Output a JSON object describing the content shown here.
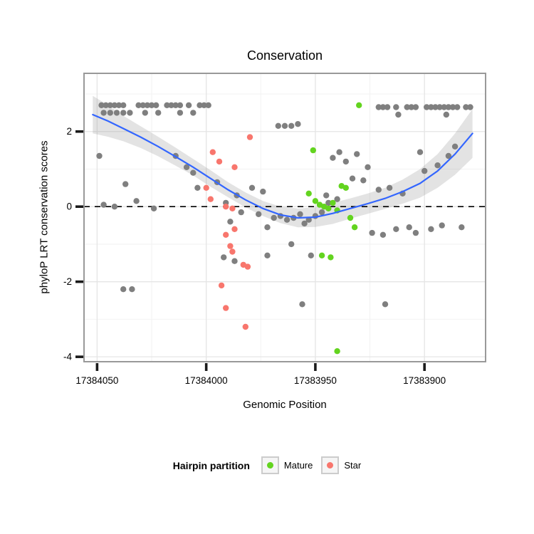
{
  "title": "Conservation",
  "axes": {
    "x_label": "Genomic Position",
    "y_label": "phyloP LRT conservation scores",
    "x_ticks": [
      17384050,
      17384000,
      17383950,
      17383900
    ],
    "x_tick_labels": [
      "17384050",
      "17384000",
      "17383950",
      "17383900"
    ],
    "x_minor_ticks": [
      17384025,
      17383975,
      17383925
    ],
    "y_ticks": [
      2,
      0,
      -2,
      -4
    ],
    "y_tick_labels": [
      "2",
      "0",
      "-2",
      "-4"
    ],
    "y_minor_ticks": [
      3,
      1,
      -1,
      -3
    ],
    "x_domain": [
      17384056,
      17383872
    ],
    "y_domain": [
      3.55,
      -4.13
    ]
  },
  "legend": {
    "title": "Hairpin partition",
    "items": [
      {
        "label": "Mature",
        "color": "#63d41f"
      },
      {
        "label": "Star",
        "color": "#f8766d"
      }
    ]
  },
  "colors": {
    "point_default": "#7f7f7f",
    "mature": "#63d41f",
    "star": "#f8766d",
    "smooth_line": "#3366ff",
    "ribbon": "#999999",
    "grid_major": "#e5e5e5",
    "grid_minor": "#f2f2f2",
    "panel_border": "#999999",
    "reference_line": "#000000",
    "tick": "#1a1a1a"
  },
  "chart_data": {
    "type": "scatter",
    "title": "Conservation",
    "xlabel": "Genomic Position",
    "ylabel": "phyloP LRT conservation scores",
    "xlim": [
      17384056,
      17383872
    ],
    "ylim": [
      -4.13,
      3.55
    ],
    "x_reversed": true,
    "grid": true,
    "legend_position": "bottom",
    "reference_line": {
      "y": 0,
      "style": "dashed",
      "color": "#000000"
    },
    "series": [
      {
        "name": "Unpartitioned",
        "color": "#7f7f7f",
        "points": [
          [
            17384048,
            2.7
          ],
          [
            17384046,
            2.7
          ],
          [
            17384044,
            2.7
          ],
          [
            17384042,
            2.7
          ],
          [
            17384040,
            2.7
          ],
          [
            17384038,
            2.7
          ],
          [
            17384031,
            2.7
          ],
          [
            17384029,
            2.7
          ],
          [
            17384027,
            2.7
          ],
          [
            17384025,
            2.7
          ],
          [
            17384023,
            2.7
          ],
          [
            17384018,
            2.7
          ],
          [
            17384016,
            2.7
          ],
          [
            17384014,
            2.7
          ],
          [
            17384012,
            2.7
          ],
          [
            17384008,
            2.7
          ],
          [
            17384003,
            2.7
          ],
          [
            17384001,
            2.7
          ],
          [
            17383999,
            2.7
          ],
          [
            17384047,
            2.5
          ],
          [
            17384044,
            2.5
          ],
          [
            17384041,
            2.5
          ],
          [
            17384038,
            2.5
          ],
          [
            17384035,
            2.5
          ],
          [
            17384028,
            2.5
          ],
          [
            17384022,
            2.5
          ],
          [
            17384012,
            2.5
          ],
          [
            17384006,
            2.5
          ],
          [
            17383921,
            2.65
          ],
          [
            17383919,
            2.65
          ],
          [
            17383917,
            2.65
          ],
          [
            17383913,
            2.65
          ],
          [
            17383908,
            2.65
          ],
          [
            17383906,
            2.65
          ],
          [
            17383904,
            2.65
          ],
          [
            17383899,
            2.65
          ],
          [
            17383897,
            2.65
          ],
          [
            17383895,
            2.65
          ],
          [
            17383893,
            2.65
          ],
          [
            17383891,
            2.65
          ],
          [
            17383889,
            2.65
          ],
          [
            17383887,
            2.65
          ],
          [
            17383885,
            2.65
          ],
          [
            17383881,
            2.65
          ],
          [
            17383879,
            2.65
          ],
          [
            17383912,
            2.45
          ],
          [
            17383890,
            2.45
          ],
          [
            17383967,
            2.15
          ],
          [
            17383964,
            2.15
          ],
          [
            17383961,
            2.15
          ],
          [
            17383958,
            2.2
          ],
          [
            17384049,
            1.35
          ],
          [
            17384047,
            0.05
          ],
          [
            17384042,
            0
          ],
          [
            17384037,
            0.6
          ],
          [
            17384032,
            0.15
          ],
          [
            17384024,
            -0.05
          ],
          [
            17384038,
            -2.2
          ],
          [
            17384034,
            -2.2
          ],
          [
            17384014,
            1.35
          ],
          [
            17384009,
            1.05
          ],
          [
            17384006,
            0.9
          ],
          [
            17384004,
            0.5
          ],
          [
            17383995,
            0.65
          ],
          [
            17383991,
            0.1
          ],
          [
            17383989,
            -0.4
          ],
          [
            17383986,
            0.3
          ],
          [
            17383984,
            -0.15
          ],
          [
            17383979,
            0.5
          ],
          [
            17383976,
            -0.2
          ],
          [
            17383974,
            0.4
          ],
          [
            17383972,
            -0.55
          ],
          [
            17383969,
            -0.3
          ],
          [
            17383966,
            -0.25
          ],
          [
            17383963,
            -0.35
          ],
          [
            17383960,
            -0.3
          ],
          [
            17383957,
            -0.2
          ],
          [
            17383955,
            -0.45
          ],
          [
            17383953,
            -0.35
          ],
          [
            17383950,
            -0.25
          ],
          [
            17383947,
            -0.15
          ],
          [
            17383944,
            0.1
          ],
          [
            17383992,
            -1.35
          ],
          [
            17383987,
            -1.45
          ],
          [
            17383972,
            -1.3
          ],
          [
            17383961,
            -1
          ],
          [
            17383956,
            -2.6
          ],
          [
            17383952,
            -1.3
          ],
          [
            17383942,
            1.3
          ],
          [
            17383939,
            1.45
          ],
          [
            17383936,
            1.2
          ],
          [
            17383933,
            0.75
          ],
          [
            17383931,
            1.4
          ],
          [
            17383928,
            0.7
          ],
          [
            17383926,
            1.05
          ],
          [
            17383924,
            -0.7
          ],
          [
            17383921,
            0.45
          ],
          [
            17383919,
            -0.75
          ],
          [
            17383916,
            0.5
          ],
          [
            17383918,
            -2.6
          ],
          [
            17383913,
            -0.6
          ],
          [
            17383910,
            0.35
          ],
          [
            17383907,
            -0.55
          ],
          [
            17383904,
            -0.7
          ],
          [
            17383902,
            1.45
          ],
          [
            17383900,
            0.95
          ],
          [
            17383897,
            -0.6
          ],
          [
            17383894,
            1.1
          ],
          [
            17383892,
            -0.5
          ],
          [
            17383889,
            1.35
          ],
          [
            17383886,
            1.6
          ],
          [
            17383883,
            -0.55
          ],
          [
            17383945,
            0.3
          ],
          [
            17383940,
            0.2
          ]
        ]
      },
      {
        "name": "Star",
        "color": "#f8766d",
        "points": [
          [
            17384000,
            0.5
          ],
          [
            17383998,
            0.2
          ],
          [
            17383997,
            1.45
          ],
          [
            17383994,
            1.2
          ],
          [
            17383993,
            -2.1
          ],
          [
            17383991,
            0
          ],
          [
            17383991,
            -0.75
          ],
          [
            17383991,
            -2.7
          ],
          [
            17383989,
            -1.05
          ],
          [
            17383988,
            -0.05
          ],
          [
            17383988,
            -1.2
          ],
          [
            17383987,
            1.05
          ],
          [
            17383987,
            -0.6
          ],
          [
            17383983,
            -1.55
          ],
          [
            17383981,
            -1.6
          ],
          [
            17383980,
            1.85
          ],
          [
            17383982,
            -3.2
          ]
        ]
      },
      {
        "name": "Mature",
        "color": "#63d41f",
        "points": [
          [
            17383930,
            2.7
          ],
          [
            17383951,
            1.5
          ],
          [
            17383953,
            0.35
          ],
          [
            17383950,
            0.15
          ],
          [
            17383948,
            0.05
          ],
          [
            17383946,
            0
          ],
          [
            17383944,
            -0.05
          ],
          [
            17383942,
            0.1
          ],
          [
            17383940,
            -0.1
          ],
          [
            17383938,
            0.55
          ],
          [
            17383936,
            0.5
          ],
          [
            17383934,
            -0.3
          ],
          [
            17383932,
            -0.55
          ],
          [
            17383947,
            -1.3
          ],
          [
            17383943,
            -1.35
          ],
          [
            17383940,
            -3.85
          ]
        ]
      }
    ],
    "smooth": {
      "name": "loess fit",
      "color": "#3366ff",
      "x": [
        17384052,
        17384045,
        17384038,
        17384030,
        17384022,
        17384014,
        17384006,
        17383998,
        17383990,
        17383982,
        17383974,
        17383966,
        17383958,
        17383950,
        17383942,
        17383934,
        17383926,
        17383918,
        17383910,
        17383902,
        17383894,
        17383886,
        17383878
      ],
      "y": [
        2.45,
        2.28,
        2.08,
        1.85,
        1.6,
        1.33,
        1.05,
        0.75,
        0.45,
        0.18,
        -0.05,
        -0.22,
        -0.3,
        -0.28,
        -0.18,
        -0.05,
        0.08,
        0.22,
        0.4,
        0.62,
        0.95,
        1.4,
        1.95
      ],
      "upper": [
        2.95,
        2.7,
        2.42,
        2.14,
        1.86,
        1.57,
        1.27,
        0.97,
        0.65,
        0.38,
        0.15,
        0,
        -0.05,
        -0.02,
        0.1,
        0.22,
        0.35,
        0.5,
        0.72,
        1,
        1.4,
        1.95,
        2.6
      ],
      "lower": [
        1.95,
        1.86,
        1.74,
        1.56,
        1.34,
        1.09,
        0.83,
        0.53,
        0.25,
        -0.02,
        -0.25,
        -0.44,
        -0.55,
        -0.54,
        -0.46,
        -0.32,
        -0.19,
        -0.06,
        0.08,
        0.24,
        0.5,
        0.85,
        1.3
      ]
    }
  }
}
